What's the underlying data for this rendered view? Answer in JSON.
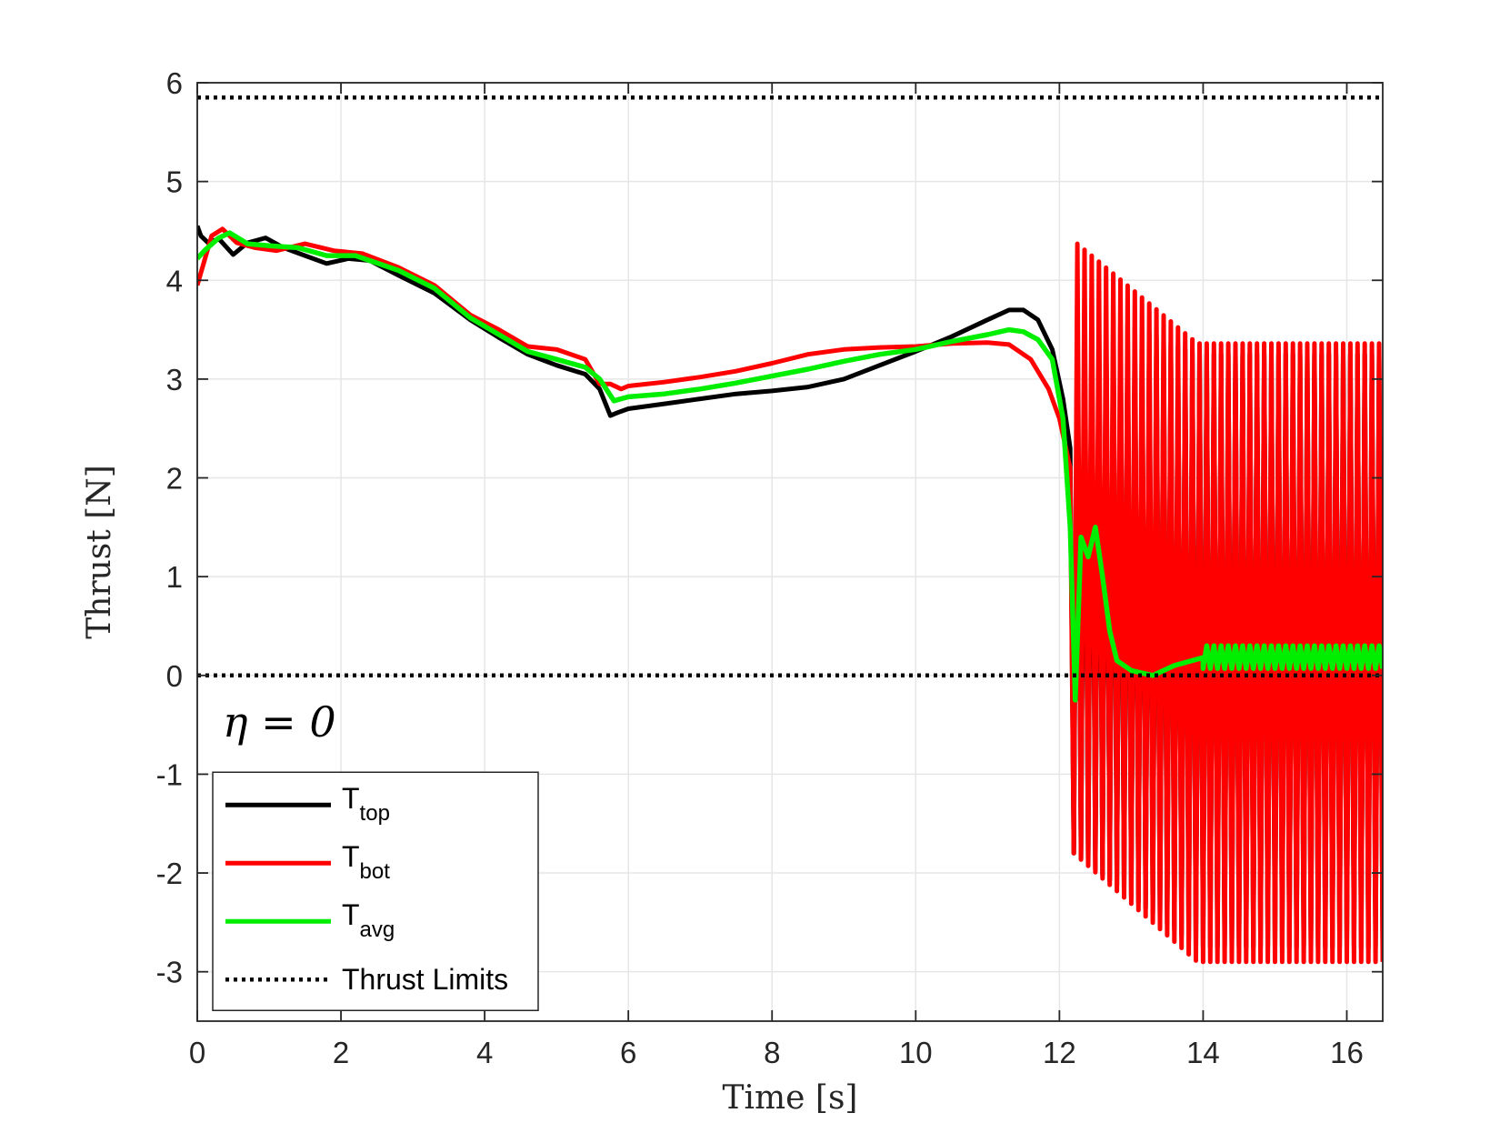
{
  "chart_data": {
    "type": "line",
    "xlabel": "Time [s]",
    "ylabel": "Thrust [N]",
    "xlim": [
      0,
      16.5
    ],
    "ylim": [
      -3.5,
      6
    ],
    "xticks": [
      "0",
      "2",
      "4",
      "6",
      "8",
      "10",
      "12",
      "14",
      "16"
    ],
    "yticks": [
      "-3",
      "-2",
      "-1",
      "0",
      "1",
      "2",
      "3",
      "4",
      "5",
      "6"
    ],
    "grid": true,
    "annotation": "η = 0",
    "legend_position": "bottom-left",
    "series": [
      {
        "name": "T_top",
        "label_main": "T",
        "label_sub": "top",
        "color": "#000000",
        "style": "solid",
        "x": [
          0,
          0.05,
          0.15,
          0.3,
          0.5,
          0.7,
          0.95,
          1.2,
          1.5,
          1.8,
          2.1,
          2.4,
          2.8,
          3.3,
          3.8,
          4.2,
          4.6,
          5.0,
          5.4,
          5.6,
          5.75,
          5.85,
          6.0,
          6.5,
          7.0,
          7.5,
          8.0,
          8.5,
          9.0,
          9.5,
          10.0,
          10.5,
          11.0,
          11.3,
          11.5,
          11.7,
          11.9,
          12.05,
          12.15
        ],
        "y": [
          4.55,
          4.45,
          4.38,
          4.42,
          4.26,
          4.38,
          4.43,
          4.33,
          4.25,
          4.17,
          4.22,
          4.2,
          4.05,
          3.87,
          3.6,
          3.42,
          3.25,
          3.14,
          3.05,
          2.9,
          2.63,
          2.66,
          2.7,
          2.75,
          2.8,
          2.85,
          2.88,
          2.92,
          3.0,
          3.14,
          3.28,
          3.43,
          3.6,
          3.7,
          3.7,
          3.6,
          3.3,
          2.8,
          2.3
        ],
        "oscillation": {
          "start": 12.2,
          "end": 16.5,
          "upper_start": 3.8,
          "upper_end": 3.25,
          "lower_start": -1.8,
          "lower_end": -2.75
        }
      },
      {
        "name": "T_bot",
        "label_main": "T",
        "label_sub": "bot",
        "color": "#ff0000",
        "style": "solid",
        "x": [
          0,
          0.1,
          0.2,
          0.35,
          0.55,
          0.8,
          1.1,
          1.5,
          1.9,
          2.3,
          2.8,
          3.3,
          3.8,
          4.2,
          4.6,
          5.0,
          5.4,
          5.6,
          5.75,
          5.9,
          6.0,
          6.5,
          7.0,
          7.5,
          8.0,
          8.5,
          9.0,
          9.5,
          10.0,
          10.5,
          11.0,
          11.3,
          11.6,
          11.85,
          12.0,
          12.15
        ],
        "y": [
          3.95,
          4.2,
          4.45,
          4.52,
          4.38,
          4.33,
          4.3,
          4.37,
          4.3,
          4.27,
          4.13,
          3.95,
          3.65,
          3.5,
          3.33,
          3.3,
          3.2,
          2.95,
          2.95,
          2.9,
          2.93,
          2.97,
          3.02,
          3.08,
          3.16,
          3.25,
          3.3,
          3.32,
          3.33,
          3.36,
          3.37,
          3.35,
          3.2,
          2.9,
          2.6,
          2.1
        ],
        "oscillation": {
          "start": 12.2,
          "end": 16.5,
          "upper_start": 4.4,
          "upper_end": 3.36,
          "lower_start": -1.8,
          "lower_end": -2.9
        }
      },
      {
        "name": "T_avg",
        "label_main": "T",
        "label_sub": "avg",
        "color": "#00ee00",
        "style": "solid",
        "x": [
          0,
          0.1,
          0.3,
          0.45,
          0.7,
          1.0,
          1.4,
          1.8,
          2.2,
          2.8,
          3.3,
          3.8,
          4.2,
          4.6,
          5.0,
          5.4,
          5.6,
          5.8,
          6.0,
          6.5,
          7.0,
          7.5,
          8.0,
          8.5,
          9.0,
          9.5,
          10.0,
          10.5,
          11.0,
          11.3,
          11.5,
          11.7,
          11.9,
          12.05,
          12.15,
          12.22,
          12.3,
          12.4,
          12.5,
          12.6,
          12.7,
          12.8,
          13.0,
          13.3,
          13.6,
          14.0
        ],
        "y": [
          4.22,
          4.3,
          4.43,
          4.48,
          4.37,
          4.35,
          4.33,
          4.25,
          4.25,
          4.1,
          3.92,
          3.62,
          3.45,
          3.28,
          3.2,
          3.12,
          3.0,
          2.78,
          2.82,
          2.85,
          2.9,
          2.96,
          3.03,
          3.1,
          3.18,
          3.25,
          3.3,
          3.38,
          3.45,
          3.5,
          3.48,
          3.4,
          3.2,
          2.6,
          1.5,
          -0.25,
          1.4,
          1.2,
          1.5,
          1.0,
          0.45,
          0.15,
          0.05,
          0.0,
          0.1,
          0.18
        ],
        "oscillation": {
          "start": 14.0,
          "end": 16.5,
          "upper_start": 0.3,
          "upper_end": 0.3,
          "lower_start": 0.07,
          "lower_end": 0.07
        }
      }
    ],
    "thrust_limits": {
      "name": "Thrust Limits",
      "upper": 5.85,
      "lower": 0,
      "color": "#000000",
      "style": "dotted"
    }
  }
}
